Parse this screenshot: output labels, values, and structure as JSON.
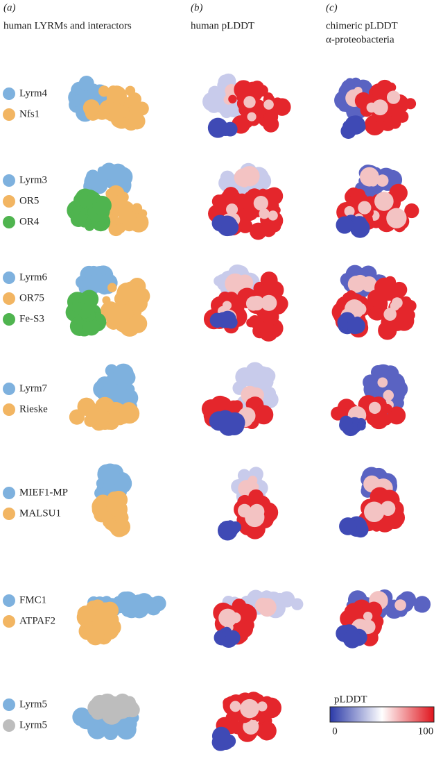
{
  "panels": [
    {
      "label": "(a)",
      "title": [
        "human LYRMs and interactors"
      ]
    },
    {
      "label": "(b)",
      "title": [
        "human pLDDT"
      ]
    },
    {
      "label": "(c)",
      "title": [
        "chimeric pLDDT",
        "α-proteobacteria"
      ]
    }
  ],
  "rows": [
    {
      "items": [
        {
          "name": "Lyrm4",
          "color": "#7eb1de"
        },
        {
          "name": "Nfs1",
          "color": "#f2b562"
        }
      ]
    },
    {
      "items": [
        {
          "name": "Lyrm3",
          "color": "#7eb1de"
        },
        {
          "name": "OR5",
          "color": "#f2b562"
        },
        {
          "name": "OR4",
          "color": "#4fb44f"
        }
      ]
    },
    {
      "items": [
        {
          "name": "Lyrm6",
          "color": "#7eb1de"
        },
        {
          "name": "OR75",
          "color": "#f2b562"
        },
        {
          "name": "Fe-S3",
          "color": "#4fb44f"
        }
      ]
    },
    {
      "items": [
        {
          "name": "Lyrm7",
          "color": "#7eb1de"
        },
        {
          "name": "Rieske",
          "color": "#f2b562"
        }
      ]
    },
    {
      "items": [
        {
          "name": "MIEF1-MP",
          "color": "#7eb1de"
        },
        {
          "name": "MALSU1",
          "color": "#f2b562"
        }
      ]
    },
    {
      "items": [
        {
          "name": "FMC1",
          "color": "#7eb1de"
        },
        {
          "name": "ATPAF2",
          "color": "#f2b562"
        }
      ]
    },
    {
      "items": [
        {
          "name": "Lyrm5",
          "color": "#7eb1de"
        },
        {
          "name": "Lyrm5",
          "color": "#bdbdbd"
        }
      ]
    }
  ],
  "colorbar": {
    "title": "pLDDT",
    "min": 0,
    "max": 100
  }
}
